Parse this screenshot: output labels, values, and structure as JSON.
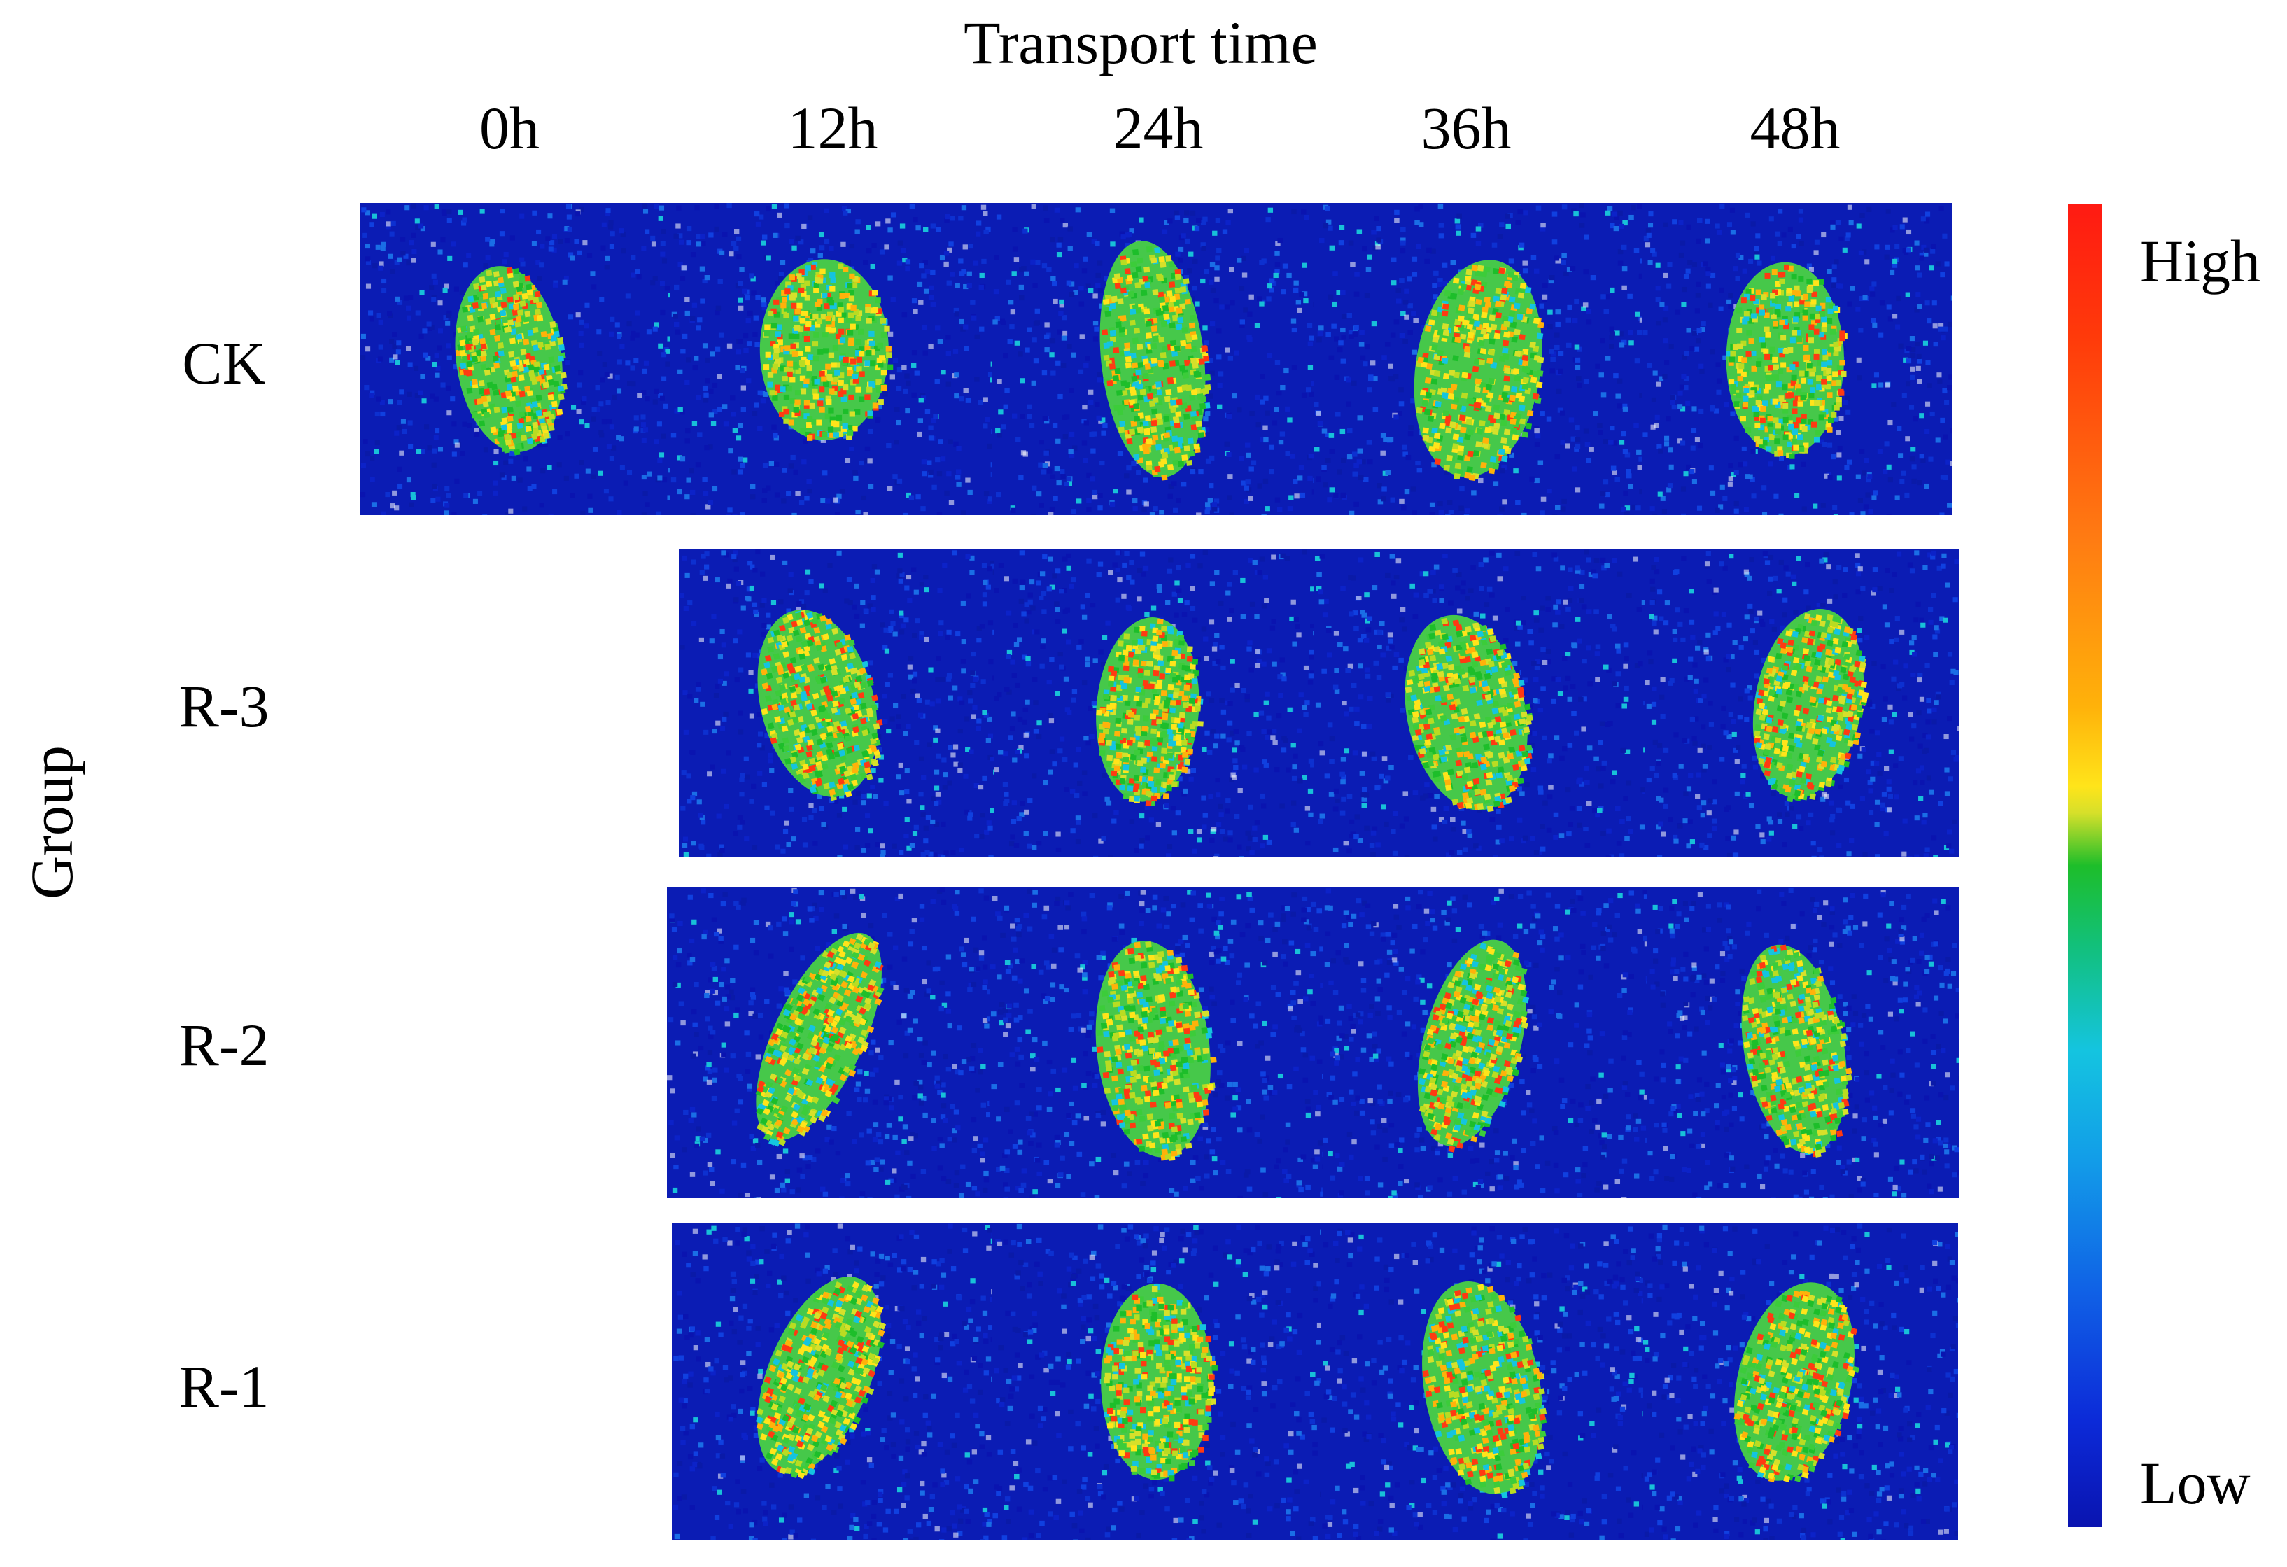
{
  "figure": {
    "title": "Transport time",
    "y_axis_label": "Group",
    "columns": [
      "0h",
      "12h",
      "24h",
      "36h",
      "48h"
    ],
    "rows": [
      {
        "label": "CK",
        "panels": [
          "0h",
          "12h",
          "24h",
          "36h",
          "48h"
        ]
      },
      {
        "label": "R-3",
        "panels": [
          "12h",
          "24h",
          "36h",
          "48h"
        ]
      },
      {
        "label": "R-2",
        "panels": [
          "12h",
          "24h",
          "36h",
          "48h"
        ]
      },
      {
        "label": "R-1",
        "panels": [
          "12h",
          "24h",
          "36h",
          "48h"
        ]
      }
    ],
    "colorbar": {
      "high_label": "High",
      "low_label": "Low",
      "colors": [
        "#ff1a12",
        "#ffb20a",
        "#ffe41a",
        "#1dbe2a",
        "#14c4e0",
        "#1062e6",
        "#0a14b0"
      ]
    }
  }
}
